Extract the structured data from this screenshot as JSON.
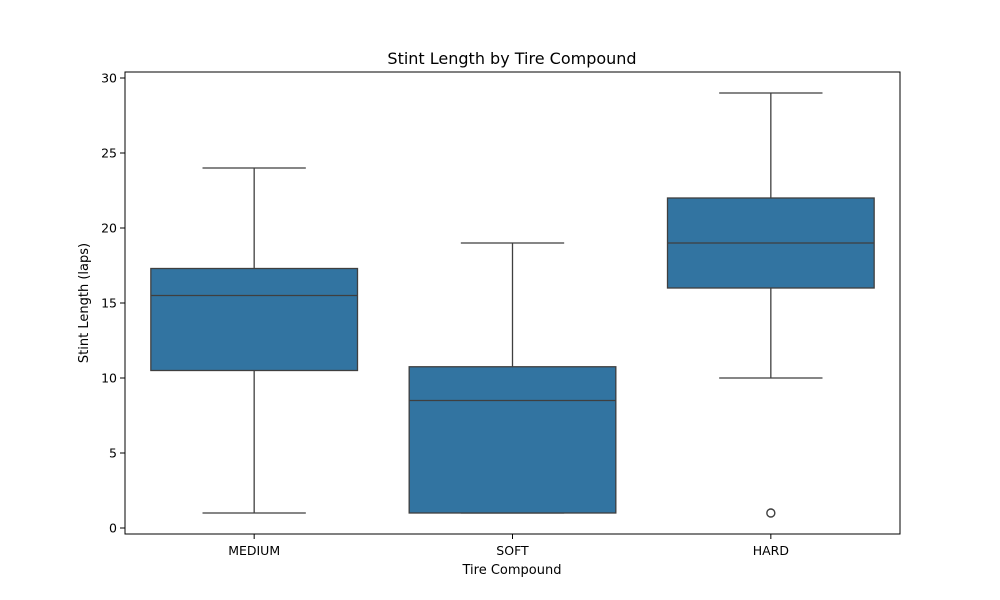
{
  "chart_data": {
    "type": "box",
    "title": "Stint Length by Tire Compound",
    "xlabel": "Tire Compound",
    "ylabel": "Stint Length (laps)",
    "ylim": [
      -0.4,
      30.4
    ],
    "yticks": [
      0,
      5,
      10,
      15,
      20,
      25,
      30
    ],
    "grid": false,
    "color": "#3274a1",
    "line_color": "#3f3f3f",
    "categories": [
      "MEDIUM",
      "SOFT",
      "HARD"
    ],
    "boxes": [
      {
        "category": "MEDIUM",
        "whisker_low": 1,
        "q1": 10.5,
        "median": 15.5,
        "q3": 17.3,
        "whisker_high": 24,
        "outliers": []
      },
      {
        "category": "SOFT",
        "whisker_low": 1,
        "q1": 1,
        "median": 8.5,
        "q3": 10.75,
        "whisker_high": 19,
        "outliers": []
      },
      {
        "category": "HARD",
        "whisker_low": 10,
        "q1": 16,
        "median": 19,
        "q3": 22,
        "whisker_high": 29,
        "outliers": [
          1
        ]
      }
    ]
  }
}
